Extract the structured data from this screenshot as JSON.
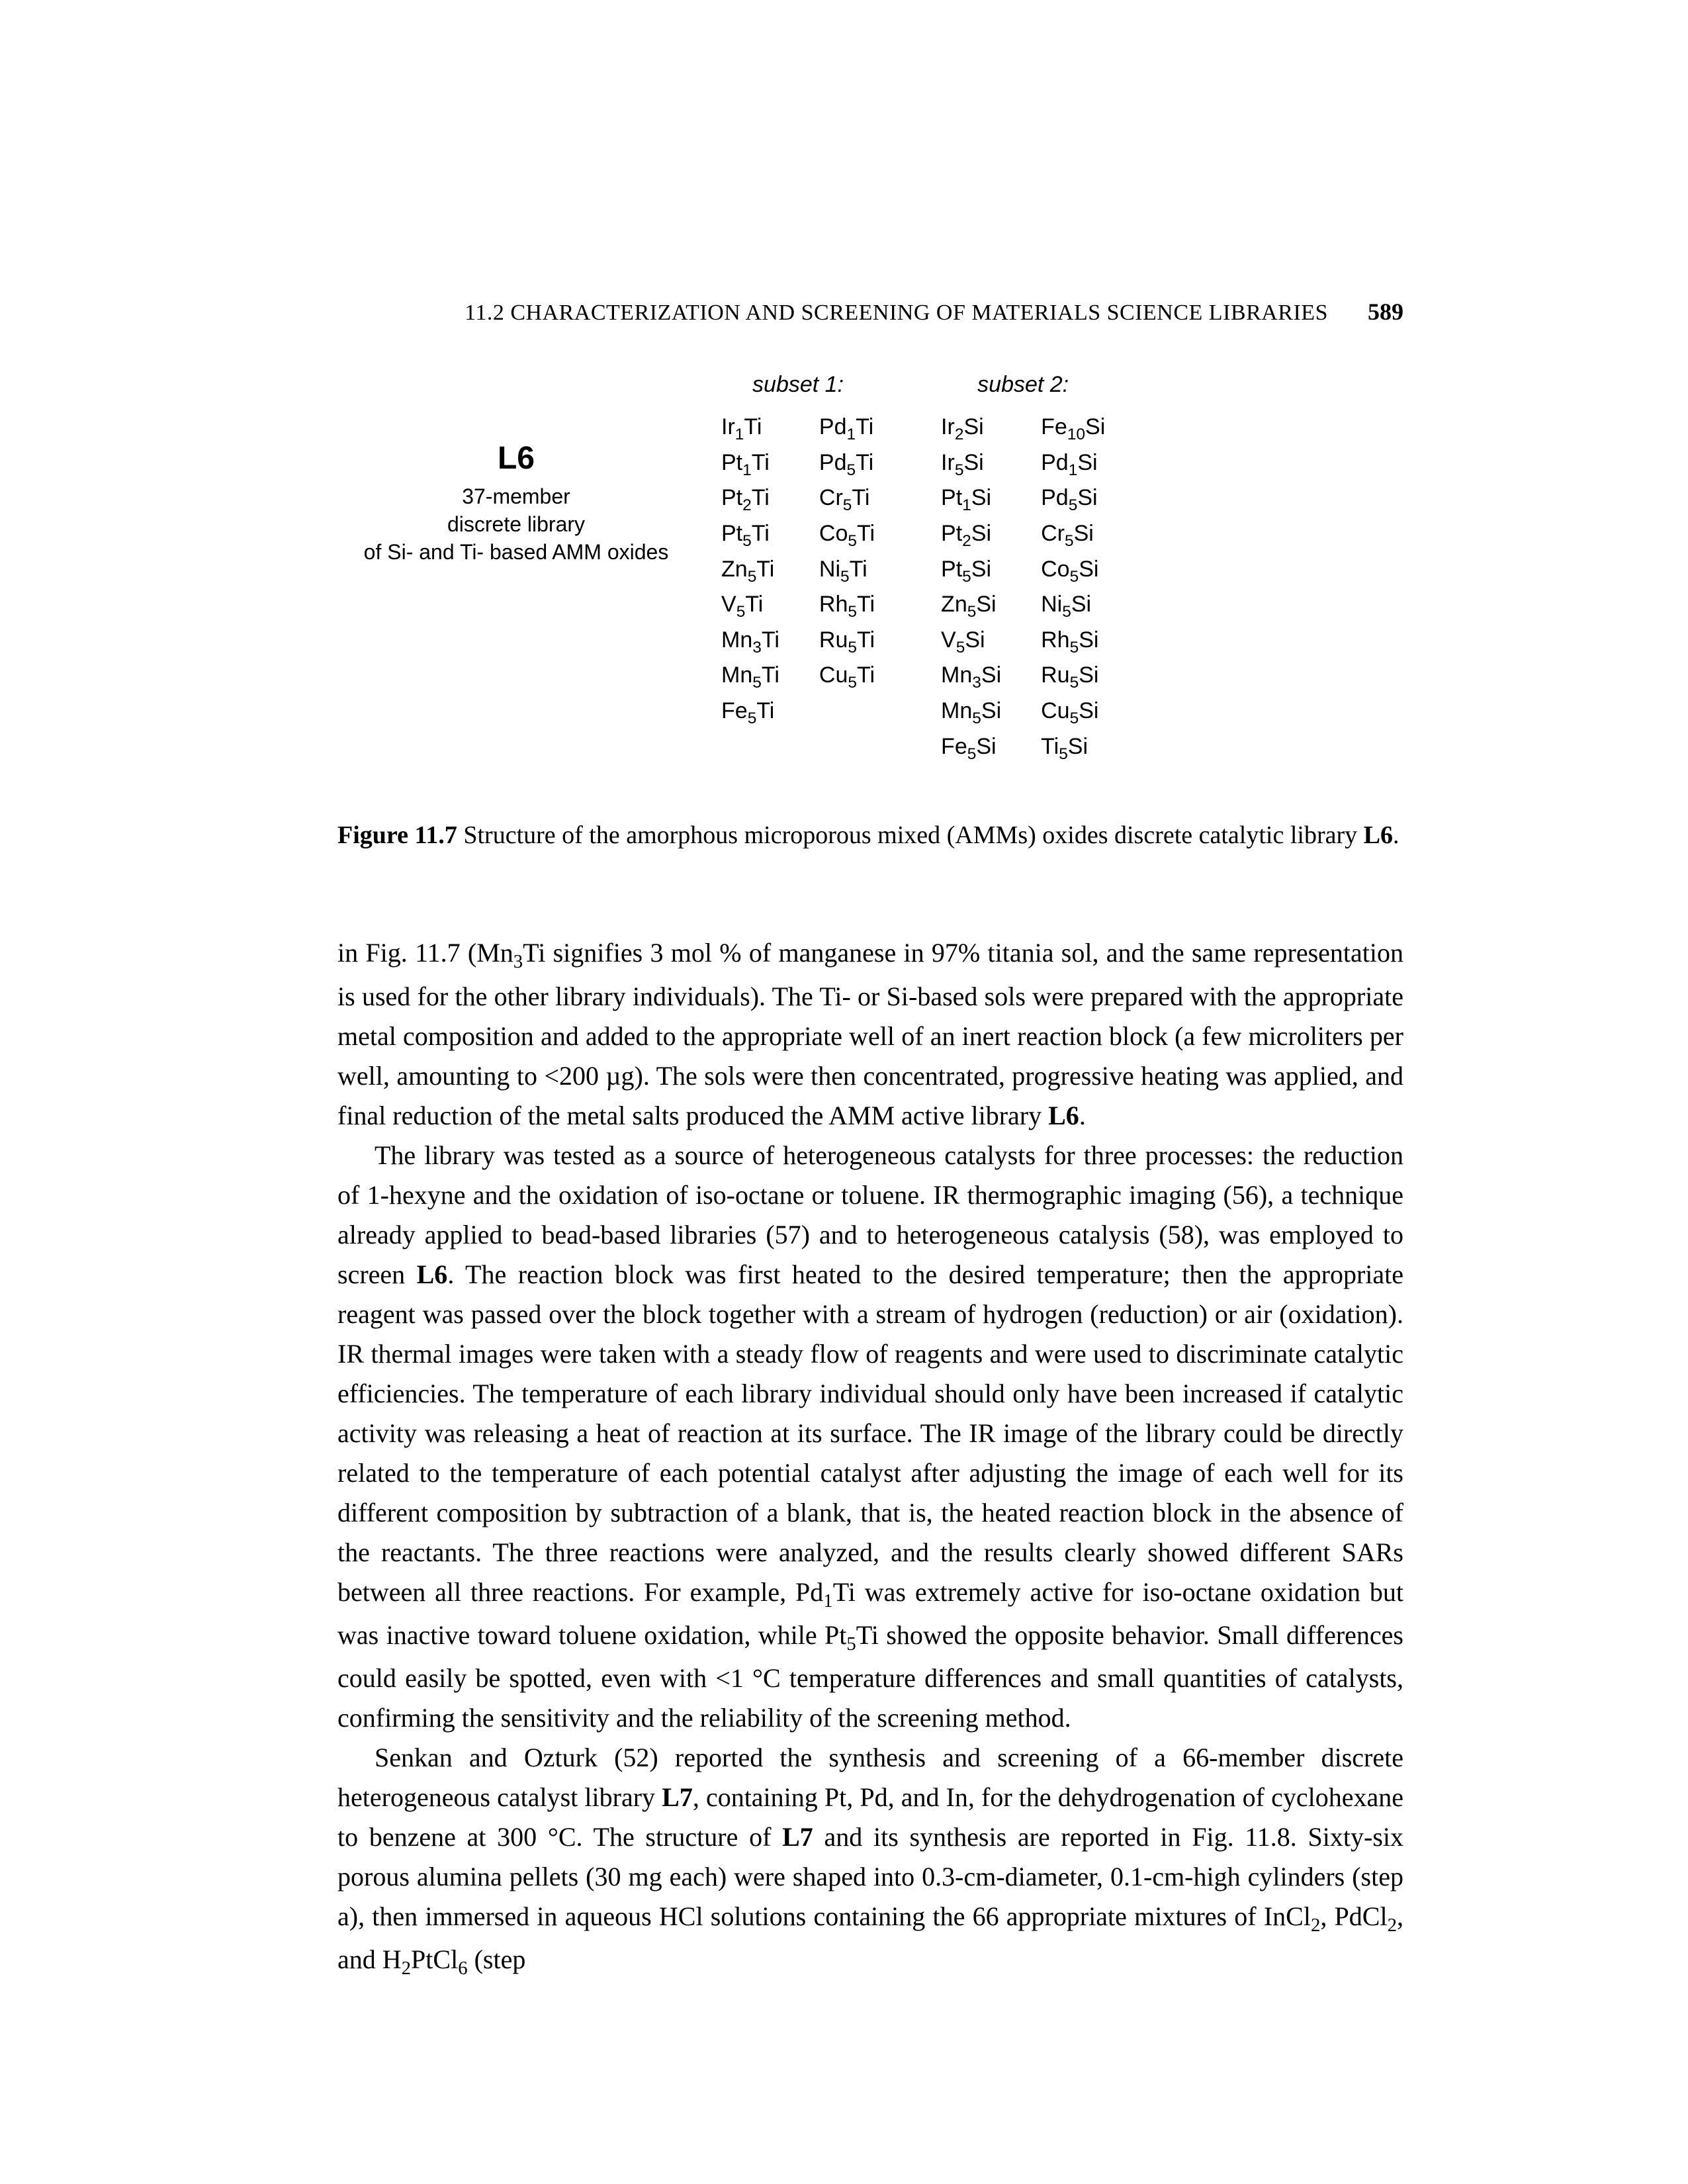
{
  "header": {
    "section": "11.2   CHARACTERIZATION AND SCREENING OF MATERIALS SCIENCE LIBRARIES",
    "page": "589"
  },
  "figure": {
    "left": {
      "code": "L6",
      "line1": "37-member",
      "line2": "discrete library",
      "line3": "of Si- and Ti- based AMM oxides"
    },
    "subset1": {
      "title": "subset 1:",
      "col1": [
        "Ir₁Ti",
        "Pt₁Ti",
        "Pt₂Ti",
        "Pt₅Ti",
        "Zn₅Ti",
        "V₅Ti",
        "Mn₃Ti",
        "Mn₅Ti",
        "Fe₅Ti"
      ],
      "col2": [
        "Pd₁Ti",
        "Pd₅Ti",
        "Cr₅Ti",
        "Co₅Ti",
        "Ni₅Ti",
        "Rh₅Ti",
        "Ru₅Ti",
        "Cu₅Ti"
      ]
    },
    "subset2": {
      "title": "subset 2:",
      "col1": [
        "Ir₂Si",
        "Ir₅Si",
        "Pt₁Si",
        "Pt₂Si",
        "Pt₅Si",
        "Zn₅Si",
        "V₅Si",
        "Mn₃Si",
        "Mn₅Si",
        "Fe₅Si"
      ],
      "col2": [
        "Fe₁₀Si",
        "Pd₁Si",
        "Pd₅Si",
        "Cr₅Si",
        "Co₅Si",
        "Ni₅Si",
        "Rh₅Si",
        "Ru₅Si",
        "Cu₅Si",
        "Ti₅Si"
      ]
    },
    "caption_label": "Figure 11.7",
    "caption_rest": "    Structure of the amorphous microporous mixed (AMMs) oxides discrete catalytic library ",
    "caption_bold_tail": "L6",
    "caption_period": "."
  },
  "paragraphs": {
    "p1a": "in Fig. 11.7 (Mn",
    "p1b": "Ti signifies 3 mol % of manganese in 97% titania sol, and the same representation is used for the other library individuals). The Ti- or Si-based sols were prepared with the appropriate metal composition and added to the appropriate well of an inert reaction block (a few microliters per well, amounting to <200 µg). The sols were then concentrated, progressive heating was applied, and final reduction of the metal salts produced the AMM active library ",
    "p1_bold": "L6",
    "p1_tail": ".",
    "p2a": "The library was tested as a source of heterogeneous catalysts for three processes: the reduction of 1-hexyne and the oxidation of iso-octane or toluene. IR thermographic imaging (56), a technique already applied to bead-based libraries (57) and to heterogeneous catalysis (58), was employed to screen ",
    "p2_bold": "L6",
    "p2b": ". The reaction block was first heated to the desired temperature; then the appropriate reagent was passed over the block together with a stream of hydrogen (reduction) or air (oxidation). IR thermal images were taken with a steady flow of reagents and were used to discriminate catalytic efficiencies. The temperature of each library individual should only have been increased if catalytic activity was releasing a heat of reaction at its surface. The IR image of the library could be directly related to the temperature of each potential catalyst after adjusting the image of each well for its different composition by subtraction of a blank, that is, the heated reaction block in the absence of the reactants. The three reactions were analyzed, and the results clearly showed different SARs between all three reactions. For example, Pd",
    "p2c": "Ti was extremely active for iso-octane oxidation but was inactive toward toluene oxidation, while Pt",
    "p2d": "Ti showed the opposite behavior. Small differences could easily be spotted, even with <1 °C temperature differences and small quantities of catalysts, confirming the sensitivity and the reliability of the screening method.",
    "p3a": "Senkan and Ozturk (52) reported the synthesis and screening of a 66-member discrete heterogeneous catalyst library ",
    "p3_bold1": "L7",
    "p3b": ", containing Pt, Pd, and In, for the dehydrogenation of cyclohexane to benzene at 300 °C. The structure of ",
    "p3_bold2": "L7",
    "p3c": " and its synthesis are reported in Fig. 11.8. Sixty-six porous alumina pellets (30 mg each) were shaped into 0.3-cm-diameter, 0.1-cm-high cylinders (step a), then immersed in aqueous HCl solutions containing the 66 appropriate mixtures of InCl",
    "p3d": ", PdCl",
    "p3e": ", and H",
    "p3f": "PtCl",
    "p3g": " (step"
  },
  "subscripts": {
    "s3": "3",
    "s1": "1",
    "s5": "5",
    "s2": "2",
    "s6": "6"
  }
}
